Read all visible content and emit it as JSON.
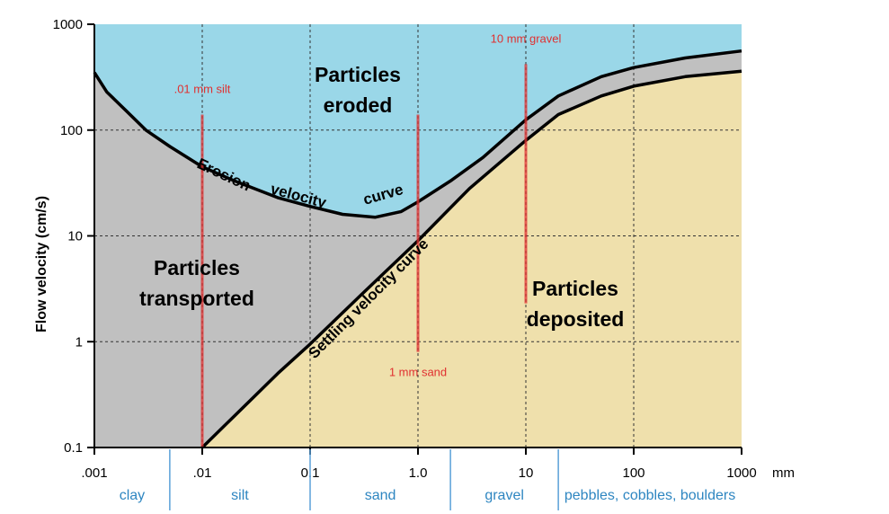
{
  "chart_data": {
    "type": "area",
    "title": "",
    "xlabel": "",
    "x_unit": "mm",
    "ylabel": "Flow velocity (cm/s)",
    "x_scale": "log",
    "y_scale": "log",
    "xlim": [
      0.001,
      1000
    ],
    "ylim": [
      0.1,
      1000
    ],
    "x_ticks": [
      {
        "value": 0.001,
        "label": ".001"
      },
      {
        "value": 0.01,
        "label": ".01"
      },
      {
        "value": 0.1,
        "label": "0.1"
      },
      {
        "value": 1,
        "label": "1.0"
      },
      {
        "value": 10,
        "label": "10"
      },
      {
        "value": 100,
        "label": "100"
      },
      {
        "value": 1000,
        "label": "1000"
      }
    ],
    "y_ticks": [
      {
        "value": 0.1,
        "label": "0.1"
      },
      {
        "value": 1,
        "label": "1"
      },
      {
        "value": 10,
        "label": "10"
      },
      {
        "value": 100,
        "label": "100"
      },
      {
        "value": 1000,
        "label": "1000"
      }
    ],
    "grid": true,
    "series": [
      {
        "name": "Erosion velocity curve",
        "points": [
          [
            0.001,
            350
          ],
          [
            0.0013,
            230
          ],
          [
            0.002,
            150
          ],
          [
            0.003,
            100
          ],
          [
            0.005,
            70
          ],
          [
            0.01,
            45
          ],
          [
            0.02,
            33
          ],
          [
            0.05,
            23
          ],
          [
            0.1,
            19
          ],
          [
            0.2,
            16
          ],
          [
            0.4,
            15
          ],
          [
            0.7,
            17
          ],
          [
            1,
            21
          ],
          [
            2,
            33
          ],
          [
            4,
            55
          ],
          [
            10,
            125
          ],
          [
            20,
            210
          ],
          [
            50,
            320
          ],
          [
            100,
            390
          ],
          [
            300,
            480
          ],
          [
            1000,
            560
          ]
        ]
      },
      {
        "name": "Settling velocity curve",
        "points": [
          [
            0.01,
            0.1
          ],
          [
            0.02,
            0.2
          ],
          [
            0.05,
            0.5
          ],
          [
            0.1,
            0.95
          ],
          [
            0.3,
            2.8
          ],
          [
            1,
            9
          ],
          [
            3,
            28
          ],
          [
            10,
            80
          ],
          [
            20,
            140
          ],
          [
            50,
            210
          ],
          [
            100,
            260
          ],
          [
            300,
            320
          ],
          [
            1000,
            360
          ]
        ]
      }
    ],
    "regions": {
      "eroded": {
        "label": "Particles eroded",
        "color": "#9ad7e8"
      },
      "transported": {
        "label": "Particles transported",
        "color": "#c0c0c0"
      },
      "deposited": {
        "label": "Particles deposited",
        "color": "#efe0ac"
      }
    },
    "reference_lines": [
      {
        "label": ".01 mm silt",
        "x": 0.01,
        "y_range": [
          0.1,
          140
        ],
        "label_at": "top"
      },
      {
        "label": "1 mm sand",
        "x": 1,
        "y_range": [
          0.8,
          140
        ],
        "label_at": "bottom"
      },
      {
        "label": "10 mm gravel",
        "x": 10,
        "y_range": [
          2.3,
          420
        ],
        "label_at": "top"
      }
    ],
    "grain_classes": [
      {
        "label": "clay",
        "from": 0.001,
        "to": 0.005
      },
      {
        "label": "silt",
        "from": 0.005,
        "to": 0.1
      },
      {
        "label": "sand",
        "from": 0.1,
        "to": 2
      },
      {
        "label": "gravel",
        "from": 2,
        "to": 20
      },
      {
        "label": "pebbles, cobbles, boulders",
        "from": 20,
        "to": 1000
      }
    ],
    "colors": {
      "reference_line": "#e03030",
      "class_label": "#2e86c1",
      "class_divider": "#5aa0d8"
    }
  }
}
